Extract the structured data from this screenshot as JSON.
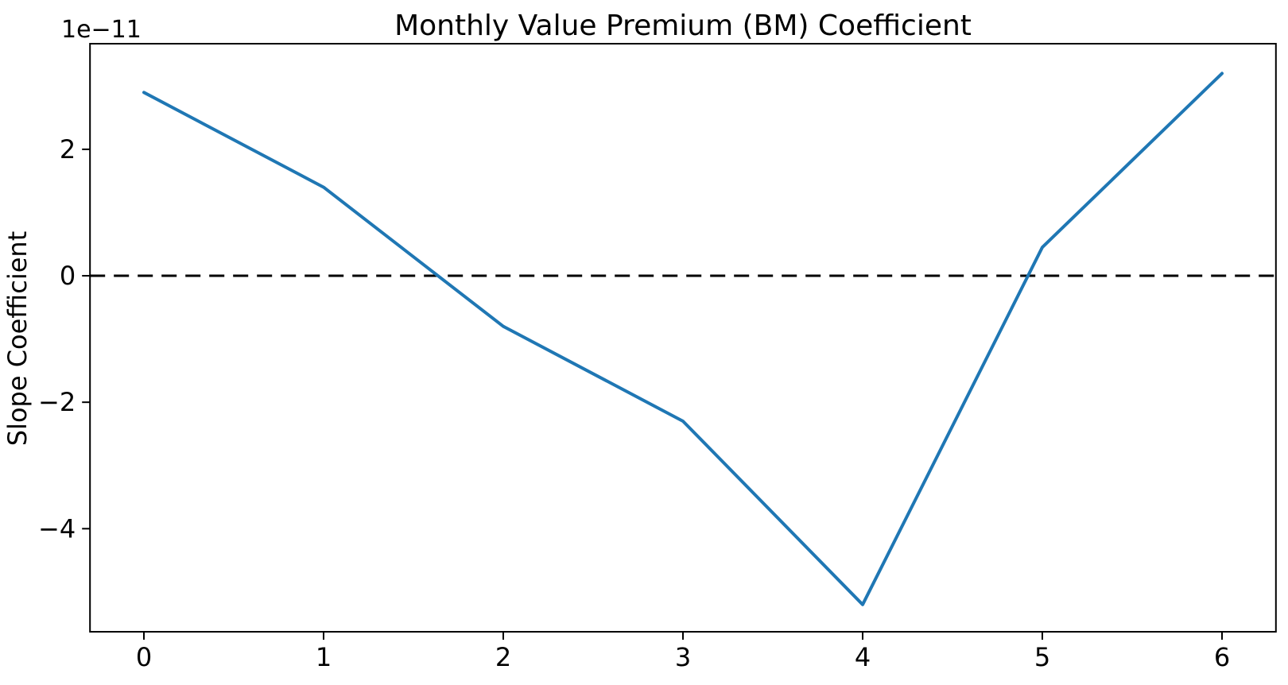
{
  "chart_data": {
    "type": "line",
    "title": "Monthly Value Premium (BM) Coefficient",
    "xlabel": "",
    "ylabel": "Slope Coefficient",
    "y_offset_text": "1e−11",
    "x": [
      0,
      1,
      2,
      3,
      4,
      5,
      6
    ],
    "y_units_of_offset": [
      2.9,
      1.4,
      -0.8,
      -2.3,
      -5.2,
      0.45,
      3.2
    ],
    "y_actual_values": [
      2.9e-11,
      1.4e-11,
      -8e-12,
      -2.3e-11,
      -5.2e-11,
      4.5e-12,
      3.2e-11
    ],
    "series_name": "Slope Coefficient",
    "xlim": [
      -0.3,
      6.3
    ],
    "ylim_units_of_offset": [
      -5.63,
      3.67
    ],
    "x_ticks": [
      {
        "value": 0,
        "label": "0"
      },
      {
        "value": 1,
        "label": "1"
      },
      {
        "value": 2,
        "label": "2"
      },
      {
        "value": 3,
        "label": "3"
      },
      {
        "value": 4,
        "label": "4"
      },
      {
        "value": 5,
        "label": "5"
      },
      {
        "value": 6,
        "label": "6"
      }
    ],
    "y_ticks": [
      {
        "value": 2,
        "label": "2"
      },
      {
        "value": 0,
        "label": "0"
      },
      {
        "value": -2,
        "label": "−2"
      },
      {
        "value": -4,
        "label": "−4"
      }
    ],
    "line_color": "#1f77b4",
    "zero_line": {
      "value": 0,
      "style": "dashed",
      "color": "#000000"
    },
    "grid": false,
    "legend": "none",
    "background_color": "#ffffff",
    "spine_color": "#000000"
  }
}
